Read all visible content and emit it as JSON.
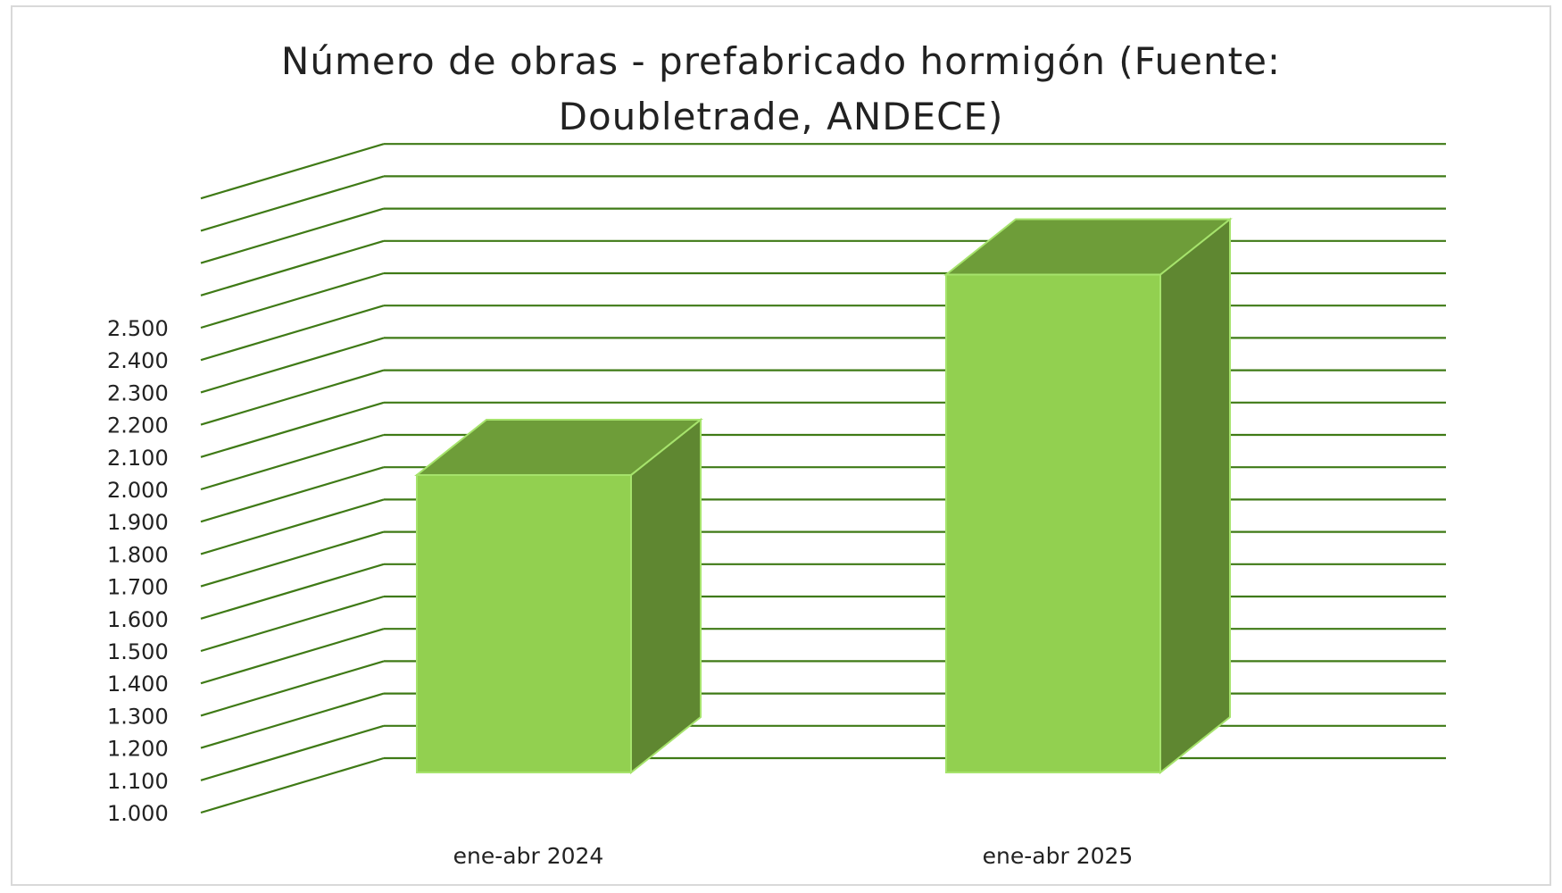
{
  "chart_data": {
    "type": "bar",
    "style": "3d-column",
    "title_lines": [
      "Número de obras - prefabricado hormigón (Fuente:",
      "Doubletrade, ANDECE)"
    ],
    "categories": [
      "ene-abr 2024",
      "ene-abr 2025"
    ],
    "values": [
      1920,
      2540
    ],
    "ylim": [
      1000,
      2500
    ],
    "yticks": [
      "1.000",
      "1.100",
      "1.200",
      "1.300",
      "1.400",
      "1.500",
      "1.600",
      "1.700",
      "1.800",
      "1.900",
      "2.000",
      "2.100",
      "2.200",
      "2.300",
      "2.400",
      "2.500"
    ],
    "xlabel": "",
    "ylabel": "",
    "grid": true,
    "legend": "none",
    "colors": {
      "bar_front": "#92d050",
      "bar_top": "#6e9d39",
      "bar_side": "#5f8731",
      "bar_outline": "#a6e36c",
      "gridline": "#3f7a16"
    }
  }
}
